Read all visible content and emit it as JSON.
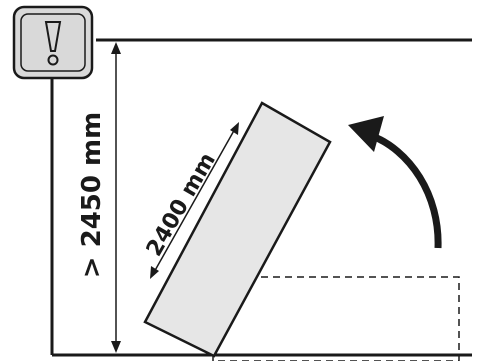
{
  "warning_badge": {
    "icon": "exclamation-icon",
    "glyph": "!"
  },
  "dimensions": {
    "height_label": "> 2450 mm",
    "panel_length_label": "2400 mm"
  },
  "colors": {
    "line": "#1a1a1a",
    "panel_fill": "#e6e6e6",
    "badge_fill": "#d9d9d9"
  },
  "motion": {
    "direction": "counter-clockwise-lift"
  }
}
